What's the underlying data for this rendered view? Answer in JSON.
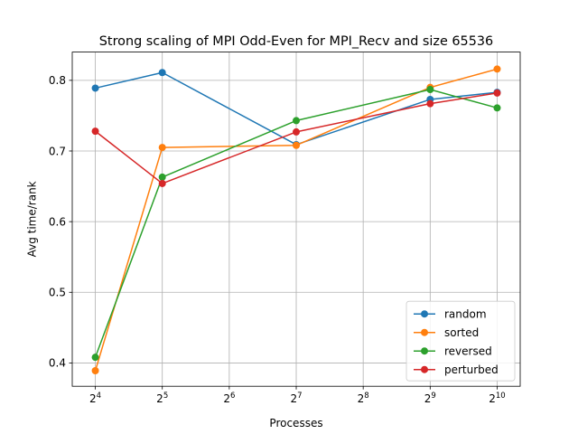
{
  "chart_data": {
    "type": "line",
    "title": "Strong scaling of MPI Odd-Even for MPI_Recv and size 65536",
    "xlabel": "Processes",
    "ylabel": "Avg time/rank",
    "x_scale": "log2",
    "x_ticks": [
      16,
      32,
      64,
      128,
      256,
      512,
      1024
    ],
    "x_tick_labels": [
      {
        "base": "2",
        "exp": "4"
      },
      {
        "base": "2",
        "exp": "5"
      },
      {
        "base": "2",
        "exp": "6"
      },
      {
        "base": "2",
        "exp": "7"
      },
      {
        "base": "2",
        "exp": "8"
      },
      {
        "base": "2",
        "exp": "9"
      },
      {
        "base": "2",
        "exp": "10"
      }
    ],
    "xlim": [
      12.6,
      1300
    ],
    "y_ticks": [
      0.4,
      0.5,
      0.6,
      0.7,
      0.8
    ],
    "y_tick_labels": [
      "0.4",
      "0.5",
      "0.6",
      "0.7",
      "0.8"
    ],
    "ylim": [
      0.367,
      0.84
    ],
    "grid": true,
    "legend_position": "lower-right",
    "x": [
      16,
      32,
      128,
      512,
      1024
    ],
    "series": [
      {
        "name": "random",
        "color": "#1f77b4",
        "values": [
          0.789,
          0.811,
          0.709,
          0.773,
          0.783
        ]
      },
      {
        "name": "sorted",
        "color": "#ff7f0e",
        "values": [
          0.389,
          0.705,
          0.708,
          0.79,
          0.816
        ]
      },
      {
        "name": "reversed",
        "color": "#2ca02c",
        "values": [
          0.408,
          0.663,
          0.743,
          0.787,
          0.761
        ]
      },
      {
        "name": "perturbed",
        "color": "#d62728",
        "values": [
          0.728,
          0.654,
          0.727,
          0.767,
          0.782
        ]
      }
    ]
  }
}
